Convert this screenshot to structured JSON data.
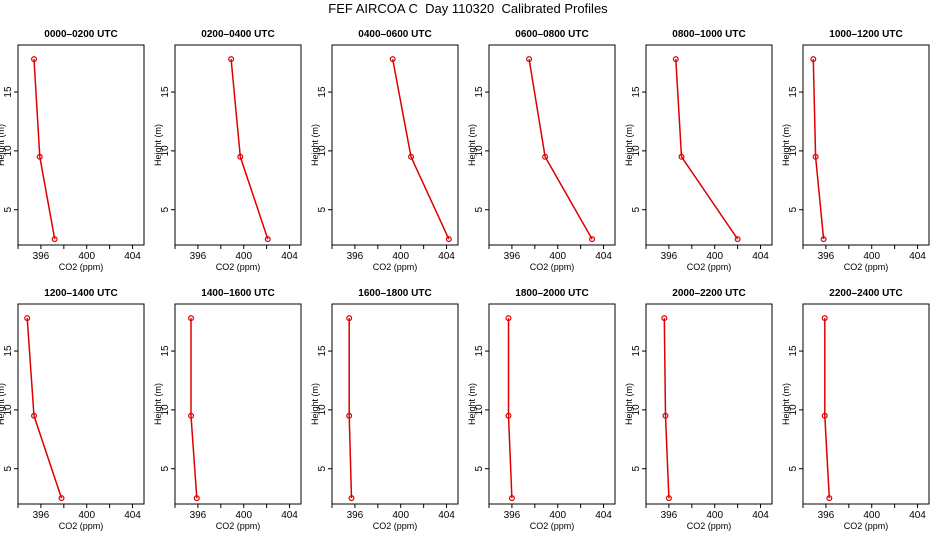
{
  "title": "FEF AIRCOA C  Day 110320  Calibrated Profiles",
  "chart_data": {
    "type": "line",
    "x_axis": {
      "label": "CO2 (ppm)",
      "range": [
        394,
        405
      ],
      "ticks": [
        396,
        400,
        404
      ],
      "minor_ticks": [
        394,
        398,
        402
      ]
    },
    "y_axis": {
      "label": "Height (m)",
      "range": [
        2,
        19
      ],
      "ticks": [
        5,
        10,
        15
      ]
    },
    "heights": [
      2.5,
      9.5,
      17.8
    ],
    "marker_color": "#dd0000",
    "panels": [
      {
        "title": "0000–0200 UTC",
        "co2": [
          397.2,
          395.9,
          395.4
        ]
      },
      {
        "title": "0200–0400 UTC",
        "co2": [
          402.1,
          399.7,
          398.9
        ]
      },
      {
        "title": "0400–0600 UTC",
        "co2": [
          404.2,
          400.9,
          399.3
        ]
      },
      {
        "title": "0600–0800 UTC",
        "co2": [
          403.0,
          398.9,
          397.5
        ]
      },
      {
        "title": "0800–1000 UTC",
        "co2": [
          402.0,
          397.1,
          396.6
        ]
      },
      {
        "title": "1000–1200 UTC",
        "co2": [
          395.8,
          395.1,
          394.9
        ]
      },
      {
        "title": "1200–1400 UTC",
        "co2": [
          397.8,
          395.4,
          394.8
        ]
      },
      {
        "title": "1400–1600 UTC",
        "co2": [
          395.9,
          395.4,
          395.4
        ]
      },
      {
        "title": "1600–1800 UTC",
        "co2": [
          395.7,
          395.5,
          395.5
        ]
      },
      {
        "title": "1800–2000 UTC",
        "co2": [
          396.0,
          395.7,
          395.7
        ]
      },
      {
        "title": "2000–2200 UTC",
        "co2": [
          396.0,
          395.7,
          395.6
        ]
      },
      {
        "title": "2200–2400 UTC",
        "co2": [
          396.3,
          395.9,
          395.9
        ]
      }
    ]
  }
}
